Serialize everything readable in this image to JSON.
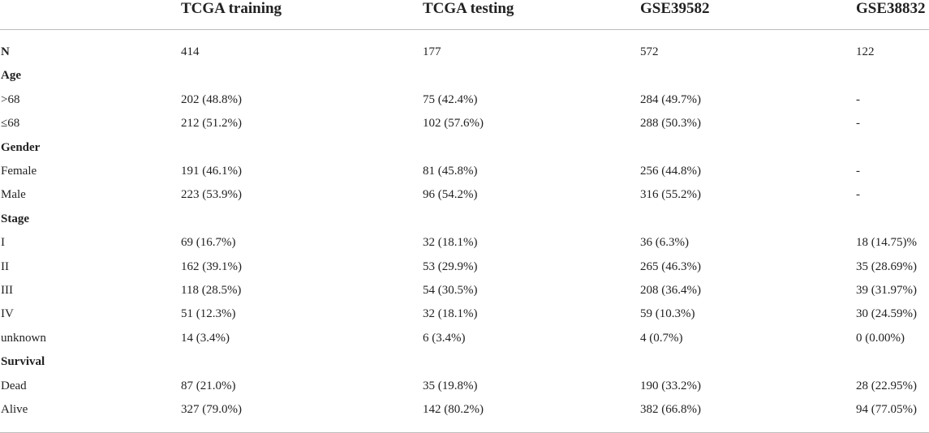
{
  "columns": [
    "TCGA training",
    "TCGA testing",
    "GSE39582",
    "GSE38832"
  ],
  "rows": [
    {
      "label": "N",
      "values": [
        "414",
        "177",
        "572",
        "122"
      ],
      "section": true
    },
    {
      "label": "Age",
      "values": [
        "",
        "",
        "",
        ""
      ],
      "section": true
    },
    {
      "label": ">68",
      "values": [
        "202 (48.8%)",
        "75 (42.4%)",
        "284 (49.7%)",
        "-"
      ],
      "section": false
    },
    {
      "label": "≤68",
      "values": [
        "212 (51.2%)",
        "102 (57.6%)",
        "288 (50.3%)",
        "-"
      ],
      "section": false
    },
    {
      "label": "Gender",
      "values": [
        "",
        "",
        "",
        ""
      ],
      "section": true
    },
    {
      "label": "Female",
      "values": [
        "191 (46.1%)",
        "81 (45.8%)",
        "256 (44.8%)",
        "-"
      ],
      "section": false
    },
    {
      "label": "Male",
      "values": [
        "223 (53.9%)",
        "96 (54.2%)",
        "316 (55.2%)",
        "-"
      ],
      "section": false
    },
    {
      "label": "Stage",
      "values": [
        "",
        "",
        "",
        ""
      ],
      "section": true
    },
    {
      "label": "I",
      "values": [
        "69 (16.7%)",
        "32 (18.1%)",
        "36 (6.3%)",
        "18 (14.75)%"
      ],
      "section": false
    },
    {
      "label": "II",
      "values": [
        "162 (39.1%)",
        "53 (29.9%)",
        "265 (46.3%)",
        "35 (28.69%)"
      ],
      "section": false
    },
    {
      "label": "III",
      "values": [
        "118 (28.5%)",
        "54 (30.5%)",
        "208 (36.4%)",
        "39 (31.97%)"
      ],
      "section": false
    },
    {
      "label": "IV",
      "values": [
        "51 (12.3%)",
        "32 (18.1%)",
        "59 (10.3%)",
        "30 (24.59%)"
      ],
      "section": false
    },
    {
      "label": "unknown",
      "values": [
        "14 (3.4%)",
        "6 (3.4%)",
        "4 (0.7%)",
        "0 (0.00%)"
      ],
      "section": false
    },
    {
      "label": "Survival",
      "values": [
        "",
        "",
        "",
        ""
      ],
      "section": true
    },
    {
      "label": "Dead",
      "values": [
        "87 (21.0%)",
        "35 (19.8%)",
        "190 (33.2%)",
        "28 (22.95%)"
      ],
      "section": false
    },
    {
      "label": "Alive",
      "values": [
        "327 (79.0%)",
        "142 (80.2%)",
        "382 (66.8%)",
        "94 (77.05%)"
      ],
      "section": false
    }
  ]
}
